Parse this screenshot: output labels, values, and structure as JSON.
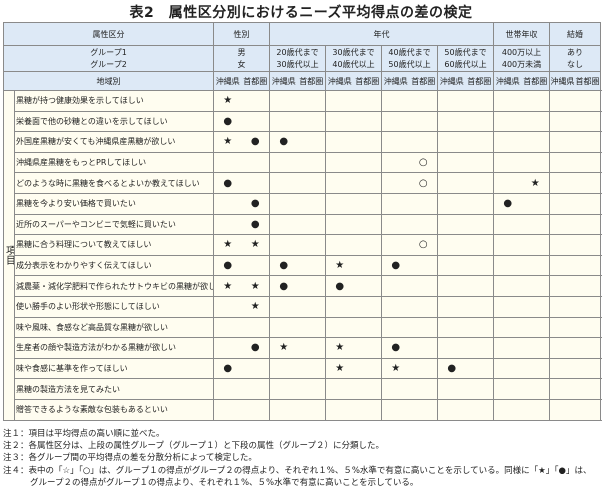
{
  "title": "表2　属性区分別におけるニーズ平均得点の差の検定",
  "header": {
    "attr_label": "属性区分",
    "group1_label": "グループ1",
    "group2_label": "グループ2",
    "region_label": "地域別",
    "categories": [
      {
        "name": "性別",
        "g1": "男",
        "g2": "女"
      },
      {
        "name": "年代",
        "g1": "20歳代まで",
        "g2": "30歳代以上"
      },
      {
        "name": "",
        "g1": "30歳代まで",
        "g2": "40歳代以上"
      },
      {
        "name": "",
        "g1": "40歳代まで",
        "g2": "50歳代以上"
      },
      {
        "name": "",
        "g1": "50歳代まで",
        "g2": "60歳代以上"
      },
      {
        "name": "世帯年収",
        "g1": "400万以上",
        "g2": "400万未満"
      },
      {
        "name": "結婚",
        "g1": "あり",
        "g2": "なし"
      }
    ],
    "regions": [
      "沖縄県",
      "首都圏"
    ]
  },
  "side_label": "項目",
  "rows": [
    {
      "item": "黒糖が持つ健康効果を示してほしい",
      "marks": [
        "★",
        "",
        "",
        "",
        "",
        "",
        "",
        "",
        "",
        "",
        "",
        "",
        "",
        "",
        "",
        "○"
      ]
    },
    {
      "item": "栄養面で他の砂糖との違いを示してほしい",
      "marks": [
        "●",
        "",
        "",
        "",
        "",
        "",
        "",
        "",
        "",
        "",
        "",
        "",
        "",
        "",
        "",
        "○"
      ]
    },
    {
      "item": "外国産黒糖が安くても沖縄県産黒糖が欲しい",
      "marks": [
        "★",
        "●",
        "●",
        "",
        "",
        "",
        "",
        "",
        "",
        "",
        "",
        "",
        "",
        "",
        "",
        "☆"
      ]
    },
    {
      "item": "沖縄県産黒糖をもっとPRしてほしい",
      "marks": [
        "",
        "",
        "",
        "",
        "",
        "",
        "",
        "○",
        "",
        "",
        "",
        "",
        "",
        "",
        "",
        "○"
      ]
    },
    {
      "item": "どのような時に黒糖を食べるとよいか教えてほしい",
      "marks": [
        "●",
        "",
        "",
        "",
        "",
        "",
        "",
        "○",
        "",
        "",
        "",
        "★",
        "",
        "",
        "",
        ""
      ]
    },
    {
      "item": "黒糖を今より安い価格で買いたい",
      "marks": [
        "",
        "●",
        "",
        "",
        "",
        "",
        "",
        "",
        "",
        "",
        "●",
        "",
        "",
        "",
        "",
        ""
      ]
    },
    {
      "item": "近所のスーパーやコンビニで気軽に買いたい",
      "marks": [
        "",
        "●",
        "",
        "",
        "",
        "",
        "",
        "",
        "",
        "",
        "",
        "",
        "",
        "",
        "",
        ""
      ]
    },
    {
      "item": "黒糖に合う料理について教えてほしい",
      "marks": [
        "★",
        "★",
        "",
        "",
        "",
        "",
        "",
        "○",
        "",
        "",
        "",
        "",
        "",
        "",
        "",
        ""
      ]
    },
    {
      "item": "成分表示をわかりやすく伝えてほしい",
      "marks": [
        "●",
        "",
        "●",
        "",
        "★",
        "",
        "●",
        "",
        "",
        "",
        "",
        "",
        "",
        "",
        "",
        ""
      ]
    },
    {
      "item": "減農薬・減化学肥料で作られたサトウキビの黒糖が欲しい",
      "marks": [
        "★",
        "★",
        "●",
        "",
        "●",
        "",
        "",
        "",
        "",
        "",
        "",
        "",
        "",
        "",
        "○",
        "○"
      ]
    },
    {
      "item": "使い勝手のよい形状や形態にしてほしい",
      "marks": [
        "",
        "★",
        "",
        "",
        "",
        "",
        "",
        "",
        "",
        "",
        "",
        "",
        "",
        "",
        "",
        ""
      ]
    },
    {
      "item": "味や風味、食感など高品質な黒糖が欲しい",
      "marks": [
        "",
        "",
        "",
        "",
        "",
        "",
        "",
        "",
        "",
        "",
        "",
        "",
        "",
        "",
        "",
        ""
      ]
    },
    {
      "item": "生産者の顔や製造方法がわかる黒糖が欲しい",
      "marks": [
        "",
        "●",
        "★",
        "",
        "★",
        "",
        "●",
        "",
        "",
        "",
        "",
        "",
        "",
        "",
        "☆",
        "○"
      ]
    },
    {
      "item": "味や食感に基準を作ってほしい",
      "marks": [
        "●",
        "",
        "",
        "",
        "★",
        "",
        "★",
        "",
        "●",
        "",
        "",
        "",
        "",
        "",
        "",
        ""
      ]
    },
    {
      "item": "黒糖の製造方法を見てみたい",
      "marks": [
        "",
        "",
        "",
        "",
        "",
        "",
        "",
        "",
        "",
        "",
        "",
        "",
        "",
        "",
        "",
        ""
      ]
    },
    {
      "item": "贈答できるような素敵な包装もあるといい",
      "marks": [
        "",
        "",
        "",
        "",
        "",
        "",
        "",
        "",
        "",
        "",
        "",
        "",
        "",
        "",
        "",
        "☆"
      ]
    }
  ],
  "notes": [
    "注１：項目は平均得点の高い順に並べた。",
    "注２：各属性区分は、上段の属性グループ（グループ１）と下段の属性（グループ２）に分類した。",
    "注３：各グループ間の平均得点の差を分散分析によって検定した。",
    "注４：表中の「☆」「○」は、グループ１の得点がグループ２の得点より、それぞれ１%、５%水準で有意に高いことを示している。同様に「★」「●」は、",
    "グループ２の得点がグループ１の得点より、それぞれ１%、５%水準で有意に高いことを示している。"
  ]
}
